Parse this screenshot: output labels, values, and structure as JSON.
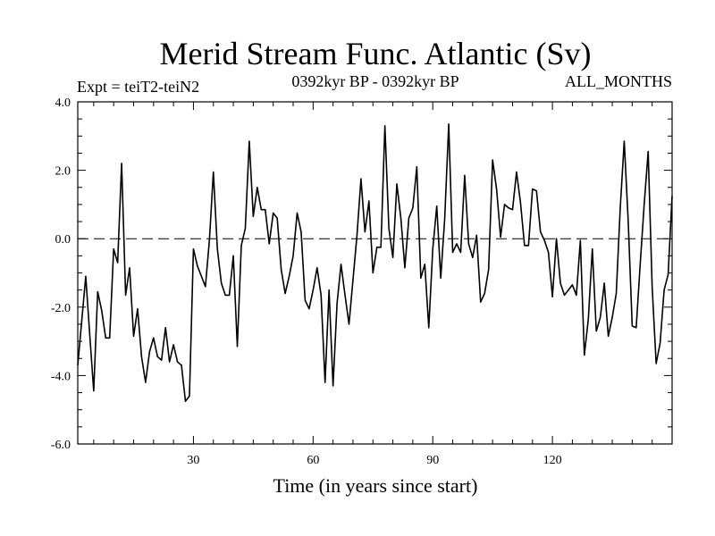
{
  "chart_data": {
    "type": "line",
    "title": "Merid Stream Func. Atlantic (Sv)",
    "subtitle_left": "Expt = teiT2-teiN2",
    "subtitle_center": "0392kyr BP - 0392kyr BP",
    "subtitle_right": "ALL_MONTHS",
    "xlabel": "Time (in years since start)",
    "ylabel": "",
    "xlim": [
      1,
      150
    ],
    "ylim": [
      -6,
      4
    ],
    "xticks": [
      30,
      60,
      90,
      120
    ],
    "xtick_labels": [
      "30",
      "60",
      "90",
      "120"
    ],
    "yticks": [
      -6,
      -4,
      -2,
      0,
      2,
      4
    ],
    "ytick_labels": [
      "-6.0",
      "-4.0",
      "-2.0",
      "0.0",
      "2.0",
      "4.0"
    ],
    "zero_line": 0,
    "series": [
      {
        "name": "Merid Stream Func.",
        "x": [
          1,
          2,
          3,
          4,
          5,
          6,
          7,
          8,
          9,
          10,
          11,
          12,
          13,
          14,
          15,
          16,
          17,
          18,
          19,
          20,
          21,
          22,
          23,
          24,
          25,
          26,
          27,
          28,
          29,
          30,
          31,
          32,
          33,
          34,
          35,
          36,
          37,
          38,
          39,
          40,
          41,
          42,
          43,
          44,
          45,
          46,
          47,
          48,
          49,
          50,
          51,
          52,
          53,
          54,
          55,
          56,
          57,
          58,
          59,
          60,
          61,
          62,
          63,
          64,
          65,
          66,
          67,
          68,
          69,
          70,
          71,
          72,
          73,
          74,
          75,
          76,
          77,
          78,
          79,
          80,
          81,
          82,
          83,
          84,
          85,
          86,
          87,
          88,
          89,
          90,
          91,
          92,
          93,
          94,
          95,
          96,
          97,
          98,
          99,
          100,
          101,
          102,
          103,
          104,
          105,
          106,
          107,
          108,
          109,
          110,
          111,
          112,
          113,
          114,
          115,
          116,
          117,
          118,
          119,
          120,
          121,
          122,
          123,
          124,
          125,
          126,
          127,
          128,
          129,
          130,
          131,
          132,
          133,
          134,
          135,
          136,
          137,
          138,
          139,
          140,
          141,
          142,
          143,
          144,
          145,
          146,
          147,
          148,
          149,
          150
        ],
        "values": [
          -3.7,
          -2.4,
          -1.1,
          -2.8,
          -4.45,
          -1.55,
          -2.1,
          -2.9,
          -2.9,
          -0.3,
          -0.7,
          2.2,
          -1.65,
          -0.85,
          -2.85,
          -2.05,
          -3.45,
          -4.2,
          -3.3,
          -2.9,
          -3.45,
          -3.55,
          -2.6,
          -3.6,
          -3.1,
          -3.6,
          -3.7,
          -4.75,
          -4.6,
          -0.3,
          -0.8,
          -1.1,
          -1.4,
          -0.05,
          1.95,
          -0.3,
          -1.3,
          -1.65,
          -1.65,
          -0.5,
          -3.15,
          -0.2,
          0.3,
          2.85,
          0.65,
          1.5,
          0.85,
          0.85,
          -0.15,
          0.75,
          0.6,
          -0.9,
          -1.6,
          -1.1,
          -0.5,
          0.75,
          0.2,
          -1.8,
          -2.05,
          -1.5,
          -0.85,
          -1.65,
          -4.2,
          -1.5,
          -4.3,
          -1.9,
          -0.75,
          -1.65,
          -2.5,
          -1.2,
          0.1,
          1.75,
          0.2,
          1.1,
          -1.0,
          -0.25,
          -0.25,
          3.3,
          0.3,
          -0.55,
          1.6,
          0.6,
          -0.85,
          0.6,
          0.9,
          2.1,
          -1.15,
          -0.75,
          -2.6,
          -0.3,
          0.95,
          -1.15,
          0.6,
          3.35,
          -0.4,
          -0.15,
          -0.4,
          1.85,
          -0.15,
          -0.55,
          0.1,
          -1.85,
          -1.6,
          -0.9,
          2.3,
          1.45,
          0.05,
          1.0,
          0.9,
          0.85,
          1.95,
          1.05,
          -0.2,
          -0.2,
          1.45,
          1.4,
          0.2,
          -0.05,
          -0.4,
          -1.7,
          0.0,
          -1.3,
          -1.65,
          -1.5,
          -1.35,
          -1.65,
          -0.05,
          -3.4,
          -2.35,
          -0.3,
          -2.7,
          -2.3,
          -1.3,
          -2.85,
          -2.3,
          -1.6,
          0.9,
          2.85,
          0.5,
          -2.55,
          -2.6,
          -0.75,
          1.0,
          2.55,
          -1.4,
          -3.65,
          -3.05,
          -1.5,
          -1.05,
          1.25
        ]
      }
    ]
  },
  "style": {
    "line_color": "#000000",
    "background": "#ffffff",
    "axis_color": "#000000"
  }
}
